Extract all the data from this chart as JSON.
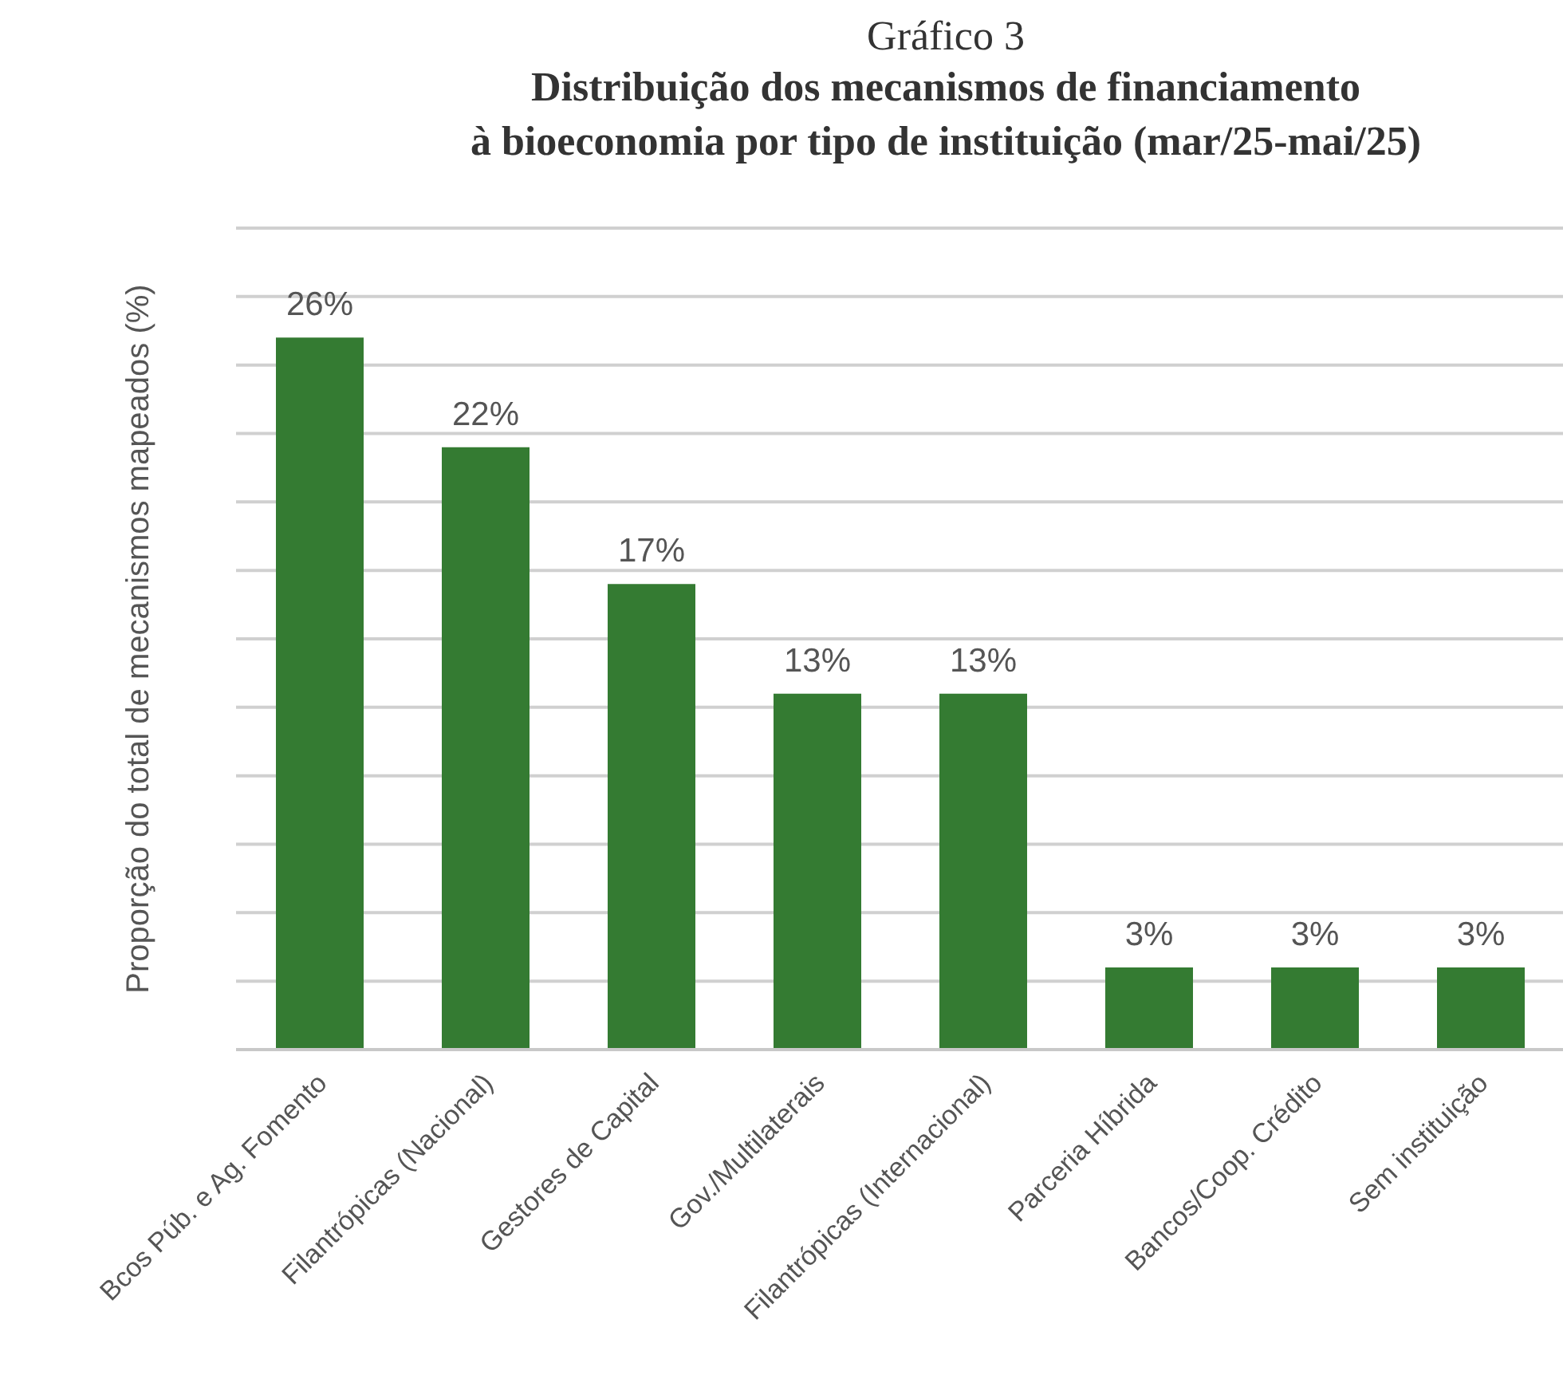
{
  "chart_data": {
    "type": "bar",
    "title": "Gráfico 3",
    "subtitle": "Distribuição dos mecanismos de financiamento\nà bioeconomia por tipo de instituição (mar/25-mai/25)",
    "ylabel": "Proporção do total de mecanismos mapeados (%)",
    "categories": [
      "Bcos Púb. e Ag. Fomento",
      "Filantrópicas (Nacional)",
      "Gestores de Capital",
      "Gov./Multilaterais",
      "Filantrópicas (Internacional)",
      "Parceria Híbrida",
      "Bancos/Coop. Crédito",
      "Sem instituição"
    ],
    "values": [
      26,
      22,
      17,
      13,
      13,
      3,
      3,
      3
    ],
    "value_labels": [
      "26%",
      "22%",
      "17%",
      "13%",
      "13%",
      "3%",
      "3%",
      "3%"
    ],
    "color": "#347b32",
    "ylim": [
      0,
      30
    ],
    "yticks": [
      {
        "value": 0,
        "label": null
      },
      {
        "value": 2.5,
        "label": null
      },
      {
        "value": 5,
        "label": null
      },
      {
        "value": 7.5,
        "label": null
      },
      {
        "value": 10,
        "label": null
      },
      {
        "value": 12.5,
        "label": null
      },
      {
        "value": 15,
        "label": null
      },
      {
        "value": 17.5,
        "label": null
      },
      {
        "value": 20,
        "label": null
      },
      {
        "value": 22.5,
        "label": null
      },
      {
        "value": 25,
        "label": null
      },
      {
        "value": 27.5,
        "label": null
      },
      {
        "value": 30,
        "label": null
      }
    ],
    "grid": "y",
    "tick_labels": "x"
  }
}
